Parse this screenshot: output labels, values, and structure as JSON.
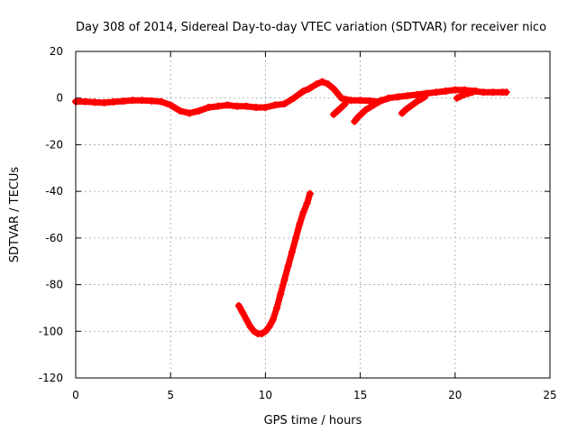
{
  "chart_data": {
    "type": "scatter",
    "title": "Day 308 of 2014, Sidereal Day-to-day VTEC variation (SDTVAR) for receiver nico",
    "xlabel": "GPS time / hours",
    "ylabel": "SDTVAR / TECUs",
    "xlim": [
      0,
      25
    ],
    "ylim": [
      -120,
      20
    ],
    "xticks": [
      0,
      5,
      10,
      15,
      20,
      25
    ],
    "yticks": [
      -120,
      -100,
      -80,
      -60,
      -40,
      -20,
      0,
      20
    ],
    "grid": true,
    "marker": "+",
    "series": [
      {
        "name": "main band",
        "color": "#ff0000",
        "x": [
          0,
          0.5,
          1,
          1.5,
          2,
          2.5,
          3,
          3.5,
          4,
          4.5,
          5,
          5.5,
          6,
          6.5,
          7,
          7.5,
          8,
          8.5,
          9,
          9.5,
          10,
          10.5,
          11,
          11.5,
          12,
          12.3,
          12.7,
          13,
          13.3,
          13.6,
          14,
          14.5,
          15,
          15.5,
          16,
          16.5,
          17,
          17.5,
          18,
          18.5,
          19,
          19.5,
          20,
          20.5,
          21,
          21.5,
          22,
          22.5,
          22.7
        ],
        "y": [
          -1.5,
          -1.5,
          -1.8,
          -2,
          -1.6,
          -1.3,
          -1,
          -1,
          -1.2,
          -1.5,
          -3,
          -5.5,
          -6.5,
          -5.5,
          -4,
          -3.5,
          -3,
          -3.5,
          -3.5,
          -4,
          -4,
          -3,
          -2.5,
          0,
          3,
          4,
          6,
          7,
          6,
          4,
          0,
          -1,
          -1,
          -1.2,
          -1.5,
          0,
          0.5,
          1,
          1.5,
          2,
          2.5,
          3,
          3.5,
          3.5,
          3,
          2.5,
          2.5,
          2.5,
          2.5
        ]
      },
      {
        "name": "descending arc",
        "color": "#ff0000",
        "x": [
          8.6,
          8.8,
          9.0,
          9.2,
          9.4,
          9.6,
          9.8,
          10.0,
          10.2,
          10.4,
          10.6,
          10.8,
          11.0,
          11.2,
          11.4,
          11.6,
          11.8,
          12.0,
          12.2,
          12.35
        ],
        "y": [
          -89,
          -92,
          -95,
          -98,
          -100,
          -101,
          -101,
          -100,
          -98,
          -95,
          -90,
          -84,
          -78,
          -72,
          -66,
          -60,
          -54,
          -49,
          -45,
          -41
        ]
      },
      {
        "name": "short ramp 1",
        "color": "#ff0000",
        "x": [
          14.7,
          14.9,
          15.1,
          15.3,
          15.5,
          15.7,
          15.9,
          16.1
        ],
        "y": [
          -10,
          -8,
          -6.5,
          -5,
          -4,
          -3,
          -2,
          -1
        ]
      },
      {
        "name": "short ramp 2",
        "color": "#ff0000",
        "x": [
          17.2,
          17.4,
          17.6,
          17.8,
          18.0,
          18.2,
          18.4
        ],
        "y": [
          -6.5,
          -5,
          -3.8,
          -2.6,
          -1.4,
          -0.5,
          0.5
        ]
      },
      {
        "name": "short ramp 3",
        "color": "#ff0000",
        "x": [
          20.1,
          20.3,
          20.5,
          20.7,
          20.9,
          21.1
        ],
        "y": [
          0,
          0.8,
          1.5,
          2,
          2.5,
          3
        ]
      },
      {
        "name": "short ramp 4",
        "color": "#ff0000",
        "x": [
          13.6,
          13.8,
          14.0,
          14.2
        ],
        "y": [
          -7,
          -5.5,
          -4,
          -2.5
        ]
      }
    ]
  }
}
